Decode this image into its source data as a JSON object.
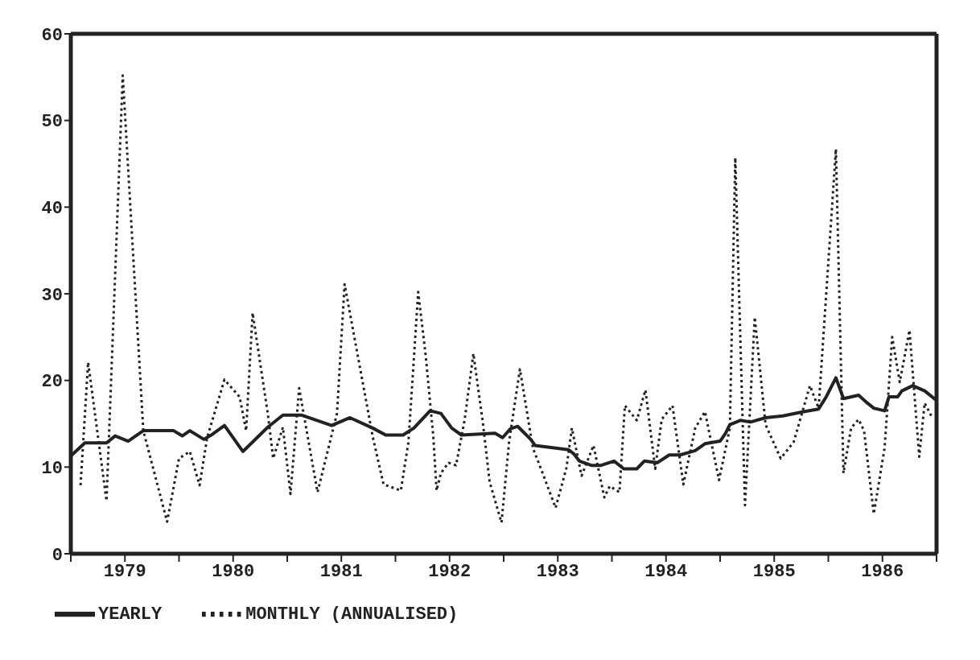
{
  "chart_data": {
    "type": "line",
    "xlim": [
      1979,
      1987
    ],
    "xticks": [
      {
        "value": 1979,
        "label": null
      },
      {
        "value": 1979.5,
        "label": "1979"
      },
      {
        "value": 1980,
        "label": null
      },
      {
        "value": 1980.5,
        "label": "1980"
      },
      {
        "value": 1981,
        "label": null
      },
      {
        "value": 1981.5,
        "label": "1981"
      },
      {
        "value": 1982,
        "label": null
      },
      {
        "value": 1982.5,
        "label": "1982"
      },
      {
        "value": 1983,
        "label": null
      },
      {
        "value": 1983.5,
        "label": "1983"
      },
      {
        "value": 1984,
        "label": null
      },
      {
        "value": 1984.5,
        "label": "1984"
      },
      {
        "value": 1985,
        "label": null
      },
      {
        "value": 1985.5,
        "label": "1985"
      },
      {
        "value": 1986,
        "label": null
      },
      {
        "value": 1986.5,
        "label": "1986"
      },
      {
        "value": 1987,
        "label": null
      }
    ],
    "ylim": [
      0,
      60
    ],
    "yticks": [
      0,
      10,
      20,
      30,
      40,
      50,
      60
    ],
    "legend": "bottom left",
    "marker": "none",
    "series": [
      {
        "name": "YEARLY",
        "color": "#222222",
        "line_style": "solid",
        "x": [
          1979.01,
          1979.13,
          1979.33,
          1979.41,
          1979.53,
          1979.67,
          1979.95,
          1980.03,
          1980.1,
          1980.23,
          1980.31,
          1980.42,
          1980.59,
          1980.82,
          1980.96,
          1981.13,
          1981.41,
          1981.58,
          1981.79,
          1981.91,
          1982.07,
          1982.17,
          1982.32,
          1982.42,
          1982.52,
          1982.61,
          1982.92,
          1982.99,
          1983.06,
          1983.13,
          1983.25,
          1983.29,
          1983.6,
          1983.65,
          1983.7,
          1983.81,
          1983.9,
          1984.02,
          1984.11,
          1984.23,
          1984.3,
          1984.42,
          1984.53,
          1984.63,
          1984.77,
          1984.86,
          1985.0,
          1985.05,
          1985.09,
          1985.19,
          1985.28,
          1985.42,
          1985.58,
          1985.77,
          1985.91,
          1985.98,
          1986.07,
          1986.14,
          1986.28,
          1986.36,
          1986.42,
          1986.52,
          1986.56,
          1986.64,
          1986.68,
          1986.78,
          1986.89,
          1986.99
        ],
        "values": [
          11.4,
          12.8,
          12.8,
          13.6,
          13.0,
          14.2,
          14.2,
          13.6,
          14.2,
          13.2,
          13.8,
          14.8,
          11.8,
          14.6,
          16.0,
          16.0,
          14.8,
          15.7,
          14.5,
          13.7,
          13.7,
          14.5,
          16.5,
          16.2,
          14.5,
          13.7,
          13.9,
          13.4,
          14.4,
          14.7,
          13.2,
          12.5,
          12.0,
          11.5,
          10.7,
          10.2,
          10.2,
          10.7,
          9.8,
          9.8,
          10.7,
          10.5,
          11.4,
          11.4,
          11.9,
          12.7,
          13.0,
          13.9,
          14.9,
          15.4,
          15.2,
          15.7,
          15.9,
          16.4,
          16.7,
          18.1,
          20.3,
          17.9,
          18.3,
          17.4,
          16.8,
          16.5,
          18.1,
          18.1,
          18.8,
          19.4,
          18.8,
          17.8
        ]
      },
      {
        "name": "MONTHLY (ANNUALISED)",
        "color": "#222222",
        "line_style": "dotted",
        "x": [
          1979.09,
          1979.16,
          1979.33,
          1979.48,
          1979.67,
          1979.89,
          1980.0,
          1980.1,
          1980.19,
          1980.26,
          1980.42,
          1980.56,
          1980.62,
          1980.68,
          1980.82,
          1980.87,
          1980.96,
          1981.03,
          1981.11,
          1981.28,
          1981.46,
          1981.53,
          1981.79,
          1981.89,
          1982.05,
          1982.12,
          1982.21,
          1982.28,
          1982.35,
          1982.38,
          1982.42,
          1982.49,
          1982.56,
          1982.64,
          1982.72,
          1982.81,
          1982.87,
          1982.98,
          1983.05,
          1983.15,
          1983.27,
          1983.36,
          1983.48,
          1983.58,
          1983.63,
          1983.72,
          1983.83,
          1983.93,
          1983.98,
          1984.07,
          1984.12,
          1984.23,
          1984.31,
          1984.4,
          1984.46,
          1984.56,
          1984.66,
          1984.77,
          1984.86,
          1984.99,
          1985.09,
          1985.14,
          1985.23,
          1985.32,
          1985.42,
          1985.56,
          1985.68,
          1985.83,
          1985.91,
          1986.07,
          1986.14,
          1986.21,
          1986.28,
          1986.33,
          1986.42,
          1986.52,
          1986.59,
          1986.66,
          1986.75,
          1986.84,
          1986.89,
          1986.96
        ],
        "values": [
          7.9,
          22.1,
          6.1,
          55.2,
          14.2,
          3.7,
          11.0,
          11.8,
          7.9,
          13.4,
          20.1,
          18.1,
          14.2,
          27.8,
          16.2,
          11.0,
          14.6,
          6.9,
          19.1,
          7.1,
          16.2,
          31.1,
          13.5,
          8.0,
          7.3,
          12.9,
          30.2,
          22.8,
          13.5,
          7.3,
          9.3,
          10.5,
          10.2,
          15.5,
          23.1,
          14.9,
          8.3,
          3.6,
          12.9,
          21.3,
          12.2,
          9.3,
          5.3,
          9.9,
          14.5,
          9.0,
          12.5,
          6.5,
          7.8,
          7.1,
          17.1,
          15.4,
          18.9,
          9.8,
          15.5,
          17.1,
          8.0,
          14.5,
          16.4,
          8.5,
          14.5,
          45.7,
          5.6,
          27.3,
          14.9,
          11.0,
          12.9,
          19.4,
          16.8,
          46.7,
          9.3,
          14.5,
          15.5,
          14.2,
          4.6,
          12.2,
          25.0,
          19.8,
          25.8,
          11.2,
          17.4,
          15.7
        ]
      }
    ]
  }
}
